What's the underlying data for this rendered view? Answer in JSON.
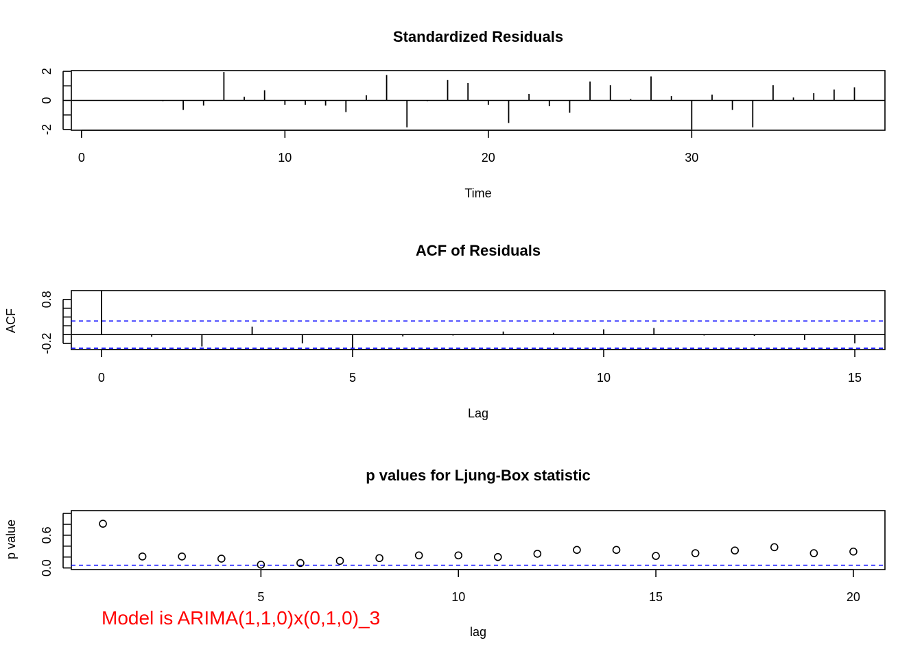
{
  "colors": {
    "axis": "#000000",
    "band": "#0000ff",
    "note": "#ff0000"
  },
  "chart_data": [
    {
      "id": "residuals",
      "type": "bar",
      "title": "Standardized Residuals",
      "xlabel": "Time",
      "ylabel": "",
      "xlim": [
        -0.5,
        39.5
      ],
      "ylim": [
        -2.05,
        2.05
      ],
      "xticks": [
        0,
        10,
        20,
        30
      ],
      "yticks": [
        -2,
        0,
        2
      ],
      "yminor": [
        -1,
        1
      ],
      "x": [
        1,
        2,
        3,
        4,
        5,
        6,
        7,
        8,
        9,
        10,
        11,
        12,
        13,
        14,
        15,
        16,
        17,
        18,
        19,
        20,
        21,
        22,
        23,
        24,
        25,
        26,
        27,
        28,
        29,
        30,
        31,
        32,
        33,
        34,
        35,
        36,
        37,
        38
      ],
      "values": [
        0.02,
        0.01,
        0.02,
        -0.05,
        -0.65,
        -0.35,
        1.95,
        0.25,
        0.7,
        -0.3,
        -0.3,
        -0.35,
        -0.8,
        0.35,
        1.75,
        -1.85,
        -0.05,
        1.4,
        1.2,
        -0.3,
        -1.55,
        0.45,
        -0.4,
        -0.85,
        1.3,
        1.05,
        0.1,
        1.65,
        0.3,
        -2.0,
        0.4,
        -0.65,
        -1.85,
        1.05,
        0.2,
        0.5,
        0.75,
        0.9
      ]
    },
    {
      "id": "acf",
      "type": "bar",
      "title": "ACF of Residuals",
      "xlabel": "Lag",
      "ylabel": "ACF",
      "xlim": [
        -0.6,
        15.6
      ],
      "ylim": [
        -0.34,
        1.0
      ],
      "xticks": [
        0,
        5,
        10,
        15
      ],
      "yticks": [
        -0.2,
        0.8
      ],
      "yminor": [
        0.0,
        0.2,
        0.4,
        0.6
      ],
      "ci": 0.31,
      "x": [
        0,
        1,
        2,
        3,
        4,
        5,
        6,
        7,
        8,
        9,
        10,
        11,
        12,
        13,
        14,
        15
      ],
      "values": [
        1.0,
        -0.05,
        -0.27,
        0.18,
        -0.2,
        -0.3,
        -0.04,
        -0.02,
        0.07,
        0.04,
        0.12,
        0.15,
        -0.02,
        -0.03,
        -0.12,
        -0.2
      ]
    },
    {
      "id": "ljungbox",
      "type": "scatter",
      "title": "p values for Ljung-Box statistic",
      "xlabel": "lag",
      "ylabel": "p value",
      "xlim": [
        0.2,
        20.8
      ],
      "ylim": [
        -0.03,
        1.05
      ],
      "xticks": [
        5,
        10,
        15,
        20
      ],
      "yticks": [
        0.0,
        0.6
      ],
      "yminor": [
        0.2,
        0.4,
        0.8,
        1.0
      ],
      "band": 0.05,
      "x": [
        1,
        2,
        3,
        4,
        5,
        6,
        7,
        8,
        9,
        10,
        11,
        12,
        13,
        14,
        15,
        16,
        17,
        18,
        19,
        20
      ],
      "values": [
        0.81,
        0.21,
        0.21,
        0.17,
        0.06,
        0.09,
        0.13,
        0.18,
        0.23,
        0.23,
        0.2,
        0.26,
        0.33,
        0.33,
        0.22,
        0.27,
        0.32,
        0.38,
        0.27,
        0.3
      ]
    }
  ],
  "annotation": "Model is ARIMA(1,1,0)x(0,1,0)_3"
}
